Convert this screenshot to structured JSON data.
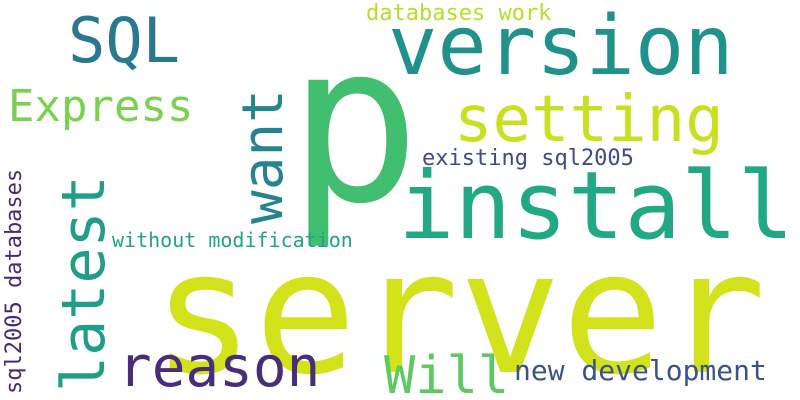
{
  "words": [
    {
      "text": "server",
      "color": "#d2e21b"
    },
    {
      "text": "p",
      "color": "#42be71"
    },
    {
      "text": "version",
      "color": "#21918c"
    },
    {
      "text": "install",
      "color": "#22a884"
    },
    {
      "text": "setting",
      "color": "#c8e020"
    },
    {
      "text": "latest",
      "color": "#1f9e89"
    },
    {
      "text": "reason",
      "color": "#472d7b"
    },
    {
      "text": "Express",
      "color": "#7ad151"
    },
    {
      "text": "want",
      "color": "#25848e"
    },
    {
      "text": "SQL",
      "color": "#2a788e"
    },
    {
      "text": "Will",
      "color": "#5ec962"
    },
    {
      "text": "new development",
      "color": "#3b528b"
    },
    {
      "text": "existing sql2005",
      "color": "#3e4a89"
    },
    {
      "text": "without modification",
      "color": "#20a386"
    },
    {
      "text": "sql2005 databases",
      "color": "#482878"
    },
    {
      "text": "databases work",
      "color": "#b5de2b"
    }
  ]
}
